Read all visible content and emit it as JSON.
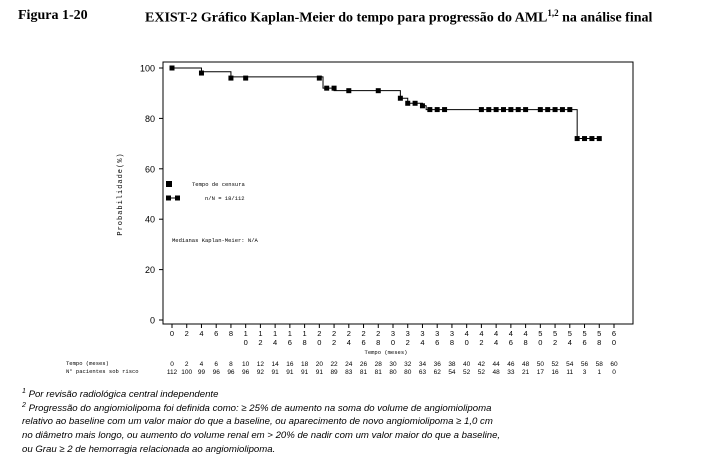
{
  "header": {
    "figure_label": "Figura 1-20",
    "title": "EXIST-2 Gráfico Kaplan-Meier do tempo para progressão do AML",
    "title_sup": "1,2",
    "title_suffix": " na análise  final"
  },
  "chart_data": {
    "type": "line",
    "ylabel": "Probabilidade(%)",
    "xlabel": "Tempo (meses)",
    "ylim": [
      0,
      100
    ],
    "xlim": [
      0,
      60
    ],
    "yticks": [
      "0",
      "20",
      "40",
      "60",
      "80",
      "100"
    ],
    "xticks": [
      "0",
      "2",
      "4",
      "6",
      "8",
      "10",
      "12",
      "14",
      "16",
      "18",
      "20",
      "22",
      "24",
      "26",
      "28",
      "30",
      "32",
      "34",
      "36",
      "38",
      "40",
      "42",
      "44",
      "46",
      "48",
      "50",
      "52",
      "54",
      "56",
      "58",
      "60"
    ],
    "series": [
      {
        "step": [
          [
            0,
            100
          ],
          [
            4,
            98.5
          ],
          [
            8,
            96.5
          ],
          [
            20,
            96.5
          ],
          [
            20.5,
            92
          ],
          [
            22,
            91
          ],
          [
            30,
            91
          ],
          [
            31,
            88
          ],
          [
            32,
            86
          ],
          [
            34,
            85
          ],
          [
            34.5,
            83.5
          ],
          [
            54.5,
            83.5
          ],
          [
            55,
            72
          ],
          [
            58,
            72
          ]
        ],
        "censored": [
          [
            0,
            100
          ],
          [
            4,
            98
          ],
          [
            8,
            96
          ],
          [
            10,
            96
          ],
          [
            20,
            96
          ],
          [
            21,
            92
          ],
          [
            22,
            92
          ],
          [
            24,
            91
          ],
          [
            28,
            91
          ],
          [
            31,
            88
          ],
          [
            32,
            86
          ],
          [
            33,
            86
          ],
          [
            34,
            85
          ],
          [
            35,
            83.5
          ],
          [
            36,
            83.5
          ],
          [
            37,
            83.5
          ],
          [
            42,
            83.5
          ],
          [
            43,
            83.5
          ],
          [
            44,
            83.5
          ],
          [
            45,
            83.5
          ],
          [
            46,
            83.5
          ],
          [
            47,
            83.5
          ],
          [
            48,
            83.5
          ],
          [
            50,
            83.5
          ],
          [
            51,
            83.5
          ],
          [
            52,
            83.5
          ],
          [
            53,
            83.5
          ],
          [
            54,
            83.5
          ],
          [
            55,
            72
          ],
          [
            56,
            72
          ],
          [
            57,
            72
          ],
          [
            58,
            72
          ]
        ]
      }
    ],
    "legend": {
      "censor_label": "Tempo de censura",
      "ratio_label": "n/N = 18/112"
    },
    "median_text": "Medianas Kaplan-Meier: N/A",
    "risk_table": {
      "time_label": "Tempo (meses)",
      "patients_label": "N° pacientes sob risco",
      "times": [
        "0",
        "2",
        "4",
        "6",
        "8",
        "10",
        "12",
        "14",
        "16",
        "18",
        "20",
        "22",
        "24",
        "26",
        "28",
        "30",
        "32",
        "34",
        "36",
        "38",
        "40",
        "42",
        "44",
        "46",
        "48",
        "50",
        "52",
        "54",
        "56",
        "58",
        "60"
      ],
      "at_risk": [
        "112",
        "100",
        "99",
        "96",
        "96",
        "96",
        "92",
        "91",
        "91",
        "91",
        "91",
        "89",
        "83",
        "81",
        "81",
        "80",
        "80",
        "63",
        "62",
        "54",
        "52",
        "52",
        "48",
        "33",
        "21",
        "17",
        "16",
        "11",
        "3",
        "1",
        "0"
      ]
    }
  },
  "footnotes": {
    "note1_sup": "1",
    "note1": " Por revisão radiológica central independente",
    "note2_sup": "2",
    "note2_line1": " Progressão do angiomiolipoma foi definida como: ≥ 25% de aumento na soma do volume de angiomiolipoma",
    "note2_line2": "relativo ao   baseline com um valor maior do que a baseline, ou aparecimento de novo angiomiolipoma ≥ 1,0 cm",
    "note2_line3": "no diâmetro mais  longo, ou aumento do volume renal em > 20% de nadir com um valor maior do que a baseline,",
    "note2_line4": "ou Grau ≥ 2 de hemorragia  relacionada ao angiomiolipoma."
  }
}
